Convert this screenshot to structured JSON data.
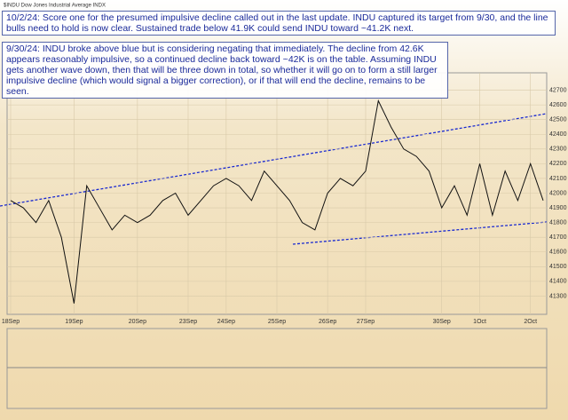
{
  "chart_data": {
    "type": "line",
    "title": "$INDU Dow Jones Industrial Average INDX",
    "annotations": [
      "10/2/24:  Score one for the presumed impulsive decline called out in the last update.  INDU captured its target from 9/30, and the line bulls need to hold is now clear.  Sustained trade below 41.9K could send INDU toward ~41.2K next.",
      "9/30/24:  INDU broke above blue but is considering negating that immediately.  The decline from 42.6K appears reasonably impulsive, so a continued decline back toward ~42K is on the table.  Assuming INDU gets another wave down, then that will be three down in total, so whether it will go on to form a still larger impulsive decline (which would signal a bigger correction), or if that will end the decline, remains to be seen."
    ],
    "categories": [
      "18Sep",
      null,
      null,
      null,
      null,
      "19Sep",
      null,
      null,
      null,
      null,
      "20Sep",
      null,
      null,
      null,
      "23Sep",
      null,
      null,
      "24Sep",
      null,
      null,
      null,
      "25Sep",
      null,
      null,
      null,
      "26Sep",
      null,
      null,
      "27Sep",
      null,
      null,
      null,
      null,
      null,
      "30Sep",
      null,
      null,
      "1Oct",
      null,
      null,
      null,
      "2Oct",
      null
    ],
    "series": [
      {
        "name": "$INDU",
        "color": "#111111",
        "values": [
          41950,
          41900,
          41800,
          41950,
          41700,
          41250,
          42050,
          41900,
          41750,
          41850,
          41800,
          41850,
          41950,
          42000,
          41850,
          41950,
          42050,
          42100,
          42050,
          41950,
          42150,
          42050,
          41950,
          41800,
          41750,
          42000,
          42100,
          42050,
          42150,
          42628,
          42450,
          42300,
          42250,
          42150,
          41900,
          42050,
          41850,
          42200,
          41850,
          42150,
          41950,
          42200,
          41950
        ]
      }
    ],
    "ylim": [
      41200,
      42800
    ],
    "yticks": [
      41300,
      41400,
      41500,
      41600,
      41700,
      41800,
      41900,
      42000,
      42100,
      42200,
      42300,
      42400,
      42500,
      42600,
      42700
    ],
    "grid": true
  }
}
